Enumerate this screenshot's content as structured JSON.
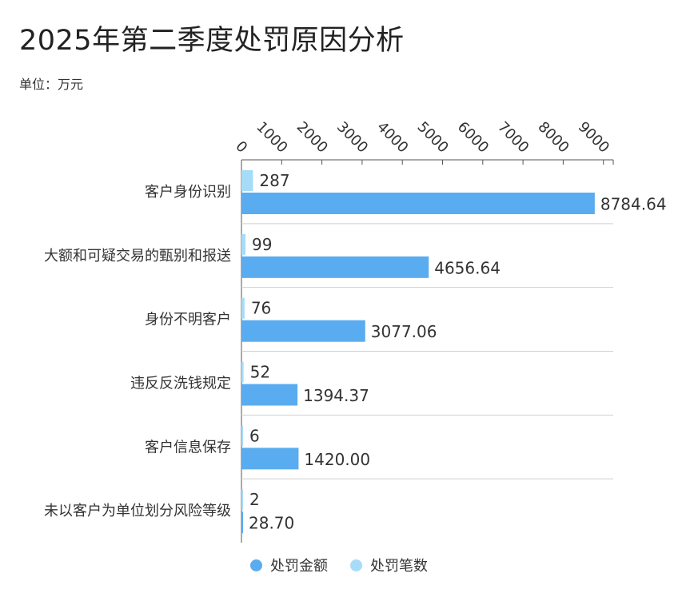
{
  "title": "2025年第二季度处罚原因分析",
  "subtitle": "单位：万元",
  "colors": {
    "amount": "#5aacf0",
    "count": "#a6dcf8"
  },
  "chart_data": {
    "type": "bar",
    "orientation": "horizontal",
    "categories": [
      "客户身份识别",
      "大额和可疑交易的甄别和报送",
      "身份不明客户",
      "违反反洗钱规定",
      "客户信息保存",
      "未以客户为单位划分风险等级"
    ],
    "series": [
      {
        "name": "处罚笔数",
        "values": [
          287,
          99,
          76,
          52,
          6,
          2
        ],
        "labels": [
          "287",
          "99",
          "76",
          "52",
          "6",
          "2"
        ]
      },
      {
        "name": "处罚金额",
        "values": [
          8784.64,
          4656.64,
          3077.06,
          1394.37,
          1420.0,
          28.7
        ],
        "labels": [
          "8784.64",
          "4656.64",
          "3077.06",
          "1394.37",
          "1420.00",
          "28.70"
        ]
      }
    ],
    "xlim": [
      0,
      9000
    ],
    "xticks": [
      "0",
      "1000",
      "2000",
      "3000",
      "4000",
      "5000",
      "6000",
      "7000",
      "8000",
      "9000"
    ],
    "xaxis_position": "top",
    "grid": "horizontal separators",
    "legend_position": "bottom"
  },
  "legend": [
    {
      "label": "处罚金额",
      "color": "#5aacf0"
    },
    {
      "label": "处罚笔数",
      "color": "#a6dcf8"
    }
  ]
}
